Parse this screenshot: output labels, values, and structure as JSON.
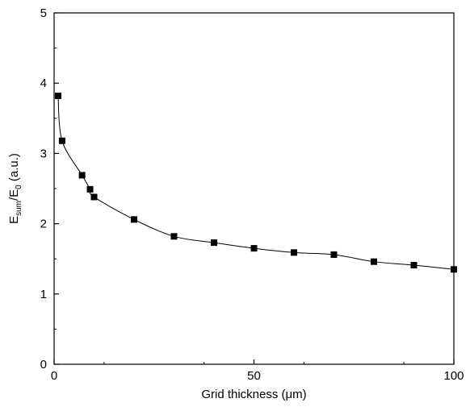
{
  "chart_data": {
    "type": "scatter",
    "title": "",
    "xlabel": "Grid thickness (μm)",
    "ylabel_main": "E",
    "ylabel_sub1": "sum",
    "ylabel_mid": "/E",
    "ylabel_sub2": "0",
    "ylabel_tail": " (a.u.)",
    "xlim": [
      0,
      100
    ],
    "ylim": [
      0,
      5
    ],
    "x_ticks": [
      0,
      50,
      100
    ],
    "y_ticks": [
      0,
      1,
      2,
      3,
      4,
      5
    ],
    "x_tick_labels": [
      "0",
      "50",
      "100"
    ],
    "y_tick_labels": [
      "0",
      "1",
      "2",
      "3",
      "4",
      "5"
    ],
    "grid": false,
    "legend": "none",
    "marker": "square",
    "fit_curve": true,
    "colors": {
      "marker": "#000000",
      "curve": "#000000",
      "axes": "#000000"
    },
    "series": [
      {
        "x": [
          1,
          2,
          7,
          9,
          10,
          20,
          30,
          40,
          50,
          60,
          70,
          80,
          90,
          100
        ],
        "y": [
          3.82,
          3.18,
          2.69,
          2.49,
          2.38,
          2.06,
          1.82,
          1.73,
          1.65,
          1.59,
          1.56,
          1.46,
          1.41,
          1.35
        ]
      }
    ]
  }
}
